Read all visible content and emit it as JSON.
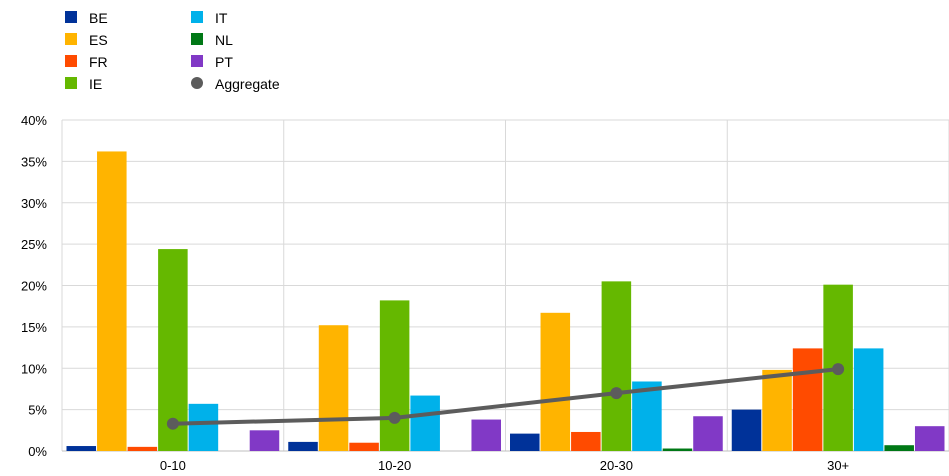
{
  "chart_data": {
    "type": "bar",
    "categories": [
      "0-10",
      "10-20",
      "20-30",
      "30+"
    ],
    "series": [
      {
        "name": "BE",
        "color": "#003299",
        "values": [
          0.6,
          1.1,
          2.1,
          5.0
        ]
      },
      {
        "name": "ES",
        "color": "#FFB400",
        "values": [
          36.2,
          15.2,
          16.7,
          9.8
        ]
      },
      {
        "name": "FR",
        "color": "#FF4B00",
        "values": [
          0.5,
          1.0,
          2.3,
          12.4
        ]
      },
      {
        "name": "IE",
        "color": "#65B800",
        "values": [
          24.4,
          18.2,
          20.5,
          20.1
        ]
      },
      {
        "name": "IT",
        "color": "#00B1EA",
        "values": [
          5.7,
          6.7,
          8.4,
          12.4
        ]
      },
      {
        "name": "NL",
        "color": "#007816",
        "values": [
          0.0,
          0.0,
          0.3,
          0.7
        ]
      },
      {
        "name": "PT",
        "color": "#8139C6",
        "values": [
          2.5,
          3.8,
          4.2,
          3.0
        ]
      }
    ],
    "line_series": {
      "name": "Aggregate",
      "color": "#5C5C5C",
      "values": [
        3.3,
        4.0,
        7.0,
        9.9
      ]
    },
    "ylim": [
      0,
      40
    ],
    "y_ticks": [
      "0%",
      "5%",
      "10%",
      "15%",
      "20%",
      "25%",
      "30%",
      "35%",
      "40%"
    ],
    "y_tick_values": [
      0,
      5,
      10,
      15,
      20,
      25,
      30,
      35,
      40
    ],
    "grid": true,
    "legend_position": "top-left",
    "title": "",
    "xlabel": "",
    "ylabel": ""
  }
}
